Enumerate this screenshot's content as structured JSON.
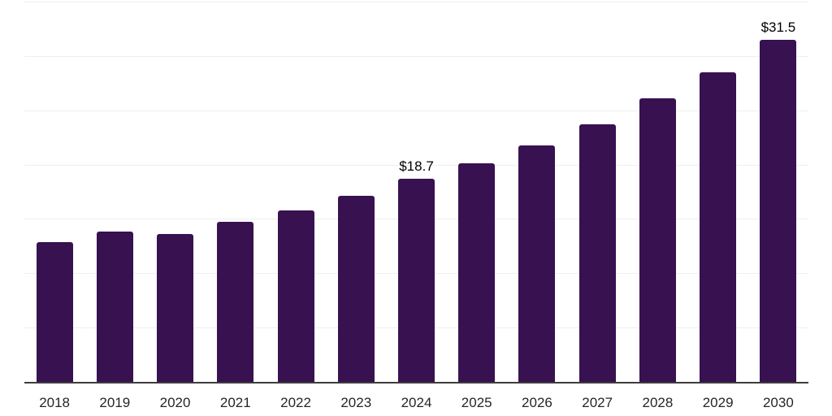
{
  "chart_data": {
    "type": "bar",
    "title": "",
    "xlabel": "",
    "ylabel": "",
    "categories": [
      "2018",
      "2019",
      "2020",
      "2021",
      "2022",
      "2023",
      "2024",
      "2025",
      "2026",
      "2027",
      "2028",
      "2029",
      "2030"
    ],
    "values": [
      12.9,
      13.8,
      13.6,
      14.7,
      15.8,
      17.1,
      18.7,
      20.1,
      21.8,
      23.7,
      26.1,
      28.5,
      31.5
    ],
    "bar_labels": [
      null,
      null,
      null,
      null,
      null,
      null,
      "$18.7",
      null,
      null,
      null,
      null,
      null,
      "$31.5"
    ],
    "ylim": [
      0,
      35
    ],
    "grid_step": 5,
    "grid": true,
    "legend": false,
    "y_tick_labels_visible": false,
    "colors": {
      "bar": "#381151",
      "gridline": "#efefef",
      "axis": "#3d3d3d",
      "tick_label": "#262626",
      "data_label": "#000000",
      "background": "#ffffff"
    }
  }
}
